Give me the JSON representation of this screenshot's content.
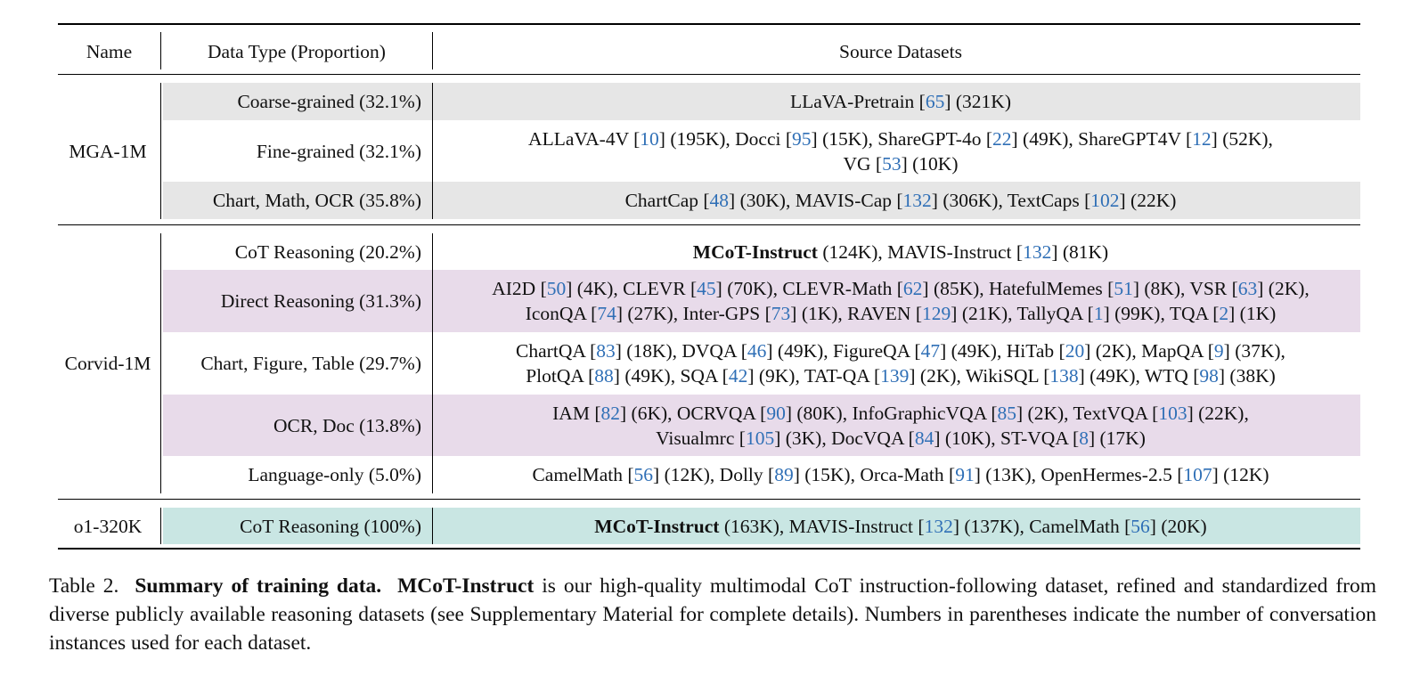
{
  "header": {
    "name": "Name",
    "data_type": "Data Type (Proportion)",
    "source": "Source Datasets"
  },
  "groups": [
    {
      "name": "MGA-1M",
      "rows": [
        {
          "type": "Coarse-grained (32.1%)",
          "band": "gray",
          "sources": [
            [
              "LLaVA-Pretrain ",
              "65",
              " (321K)"
            ]
          ]
        },
        {
          "type": "Fine-grained (32.1%)",
          "band": "none",
          "sources": [
            [
              "ALLaVA-4V ",
              "10",
              " (195K), Docci ",
              "95",
              " (15K), ShareGPT-4o ",
              "22",
              " (49K), ShareGPT4V ",
              "12",
              " (52K),"
            ],
            [
              "VG ",
              "53",
              " (10K)"
            ]
          ]
        },
        {
          "type": "Chart, Math, OCR (35.8%)",
          "band": "gray",
          "sources": [
            [
              "ChartCap ",
              "48",
              " (30K), MAVIS-Cap ",
              "132",
              " (306K), TextCaps ",
              "102",
              " (22K)"
            ]
          ]
        }
      ]
    },
    {
      "name": "Corvid-1M",
      "rows": [
        {
          "type": "CoT Reasoning (20.2%)",
          "band": "none",
          "bold_lead": "MCoT-Instruct",
          "sources": [
            [
              " (124K), MAVIS-Instruct ",
              "132",
              " (81K)"
            ]
          ]
        },
        {
          "type": "Direct Reasoning (31.3%)",
          "band": "purple",
          "sources": [
            [
              "AI2D ",
              "50",
              " (4K), CLEVR ",
              "45",
              " (70K), CLEVR-Math ",
              "62",
              " (85K), HatefulMemes ",
              "51",
              " (8K), VSR ",
              "63",
              " (2K),"
            ],
            [
              "IconQA ",
              "74",
              " (27K), Inter-GPS ",
              "73",
              " (1K), RAVEN ",
              "129",
              " (21K), TallyQA ",
              "1",
              " (99K), TQA ",
              "2",
              " (1K)"
            ]
          ]
        },
        {
          "type": "Chart, Figure, Table (29.7%)",
          "band": "none",
          "sources": [
            [
              "ChartQA ",
              "83",
              " (18K), DVQA ",
              "46",
              " (49K), FigureQA ",
              "47",
              " (49K), HiTab ",
              "20",
              " (2K), MapQA ",
              "9",
              " (37K),"
            ],
            [
              "PlotQA ",
              "88",
              " (49K), SQA ",
              "42",
              " (9K), TAT-QA ",
              "139",
              " (2K), WikiSQL ",
              "138",
              " (49K), WTQ ",
              "98",
              " (38K)"
            ]
          ]
        },
        {
          "type": "OCR, Doc (13.8%)",
          "band": "purple",
          "sources": [
            [
              "IAM ",
              "82",
              " (6K), OCRVQA ",
              "90",
              " (80K), InfoGraphicVQA ",
              "85",
              " (2K), TextVQA ",
              "103",
              " (22K),"
            ],
            [
              "Visualmrc ",
              "105",
              " (3K), DocVQA ",
              "84",
              " (10K), ST-VQA ",
              "8",
              " (17K)"
            ]
          ]
        },
        {
          "type": "Language-only (5.0%)",
          "band": "none",
          "sources": [
            [
              "CamelMath ",
              "56",
              " (12K), Dolly ",
              "89",
              " (15K), Orca-Math ",
              "91",
              " (13K), OpenHermes-2.5 ",
              "107",
              " (12K)"
            ]
          ]
        }
      ]
    },
    {
      "name": "o1-320K",
      "rows": [
        {
          "type": "CoT Reasoning (100%)",
          "band": "teal",
          "bold_lead": "MCoT-Instruct",
          "sources": [
            [
              " (163K), MAVIS-Instruct ",
              "132",
              " (137K), CamelMath ",
              "56",
              " (20K)"
            ]
          ]
        }
      ]
    }
  ],
  "caption": {
    "label": "Table 2.",
    "title": "Summary of training data.",
    "bold_term": "MCoT-Instruct",
    "text": "is our high-quality multimodal CoT instruction-following dataset, refined and standardized from diverse publicly available reasoning datasets (see Supplementary Material for complete details). Numbers in parentheses indicate the number of conversation instances used for each dataset."
  },
  "colors": {
    "ref_link": "#2f6fb6",
    "band_gray": "#e6e6e6",
    "band_purple": "#e8dbea",
    "band_teal": "#c9e6e3"
  }
}
